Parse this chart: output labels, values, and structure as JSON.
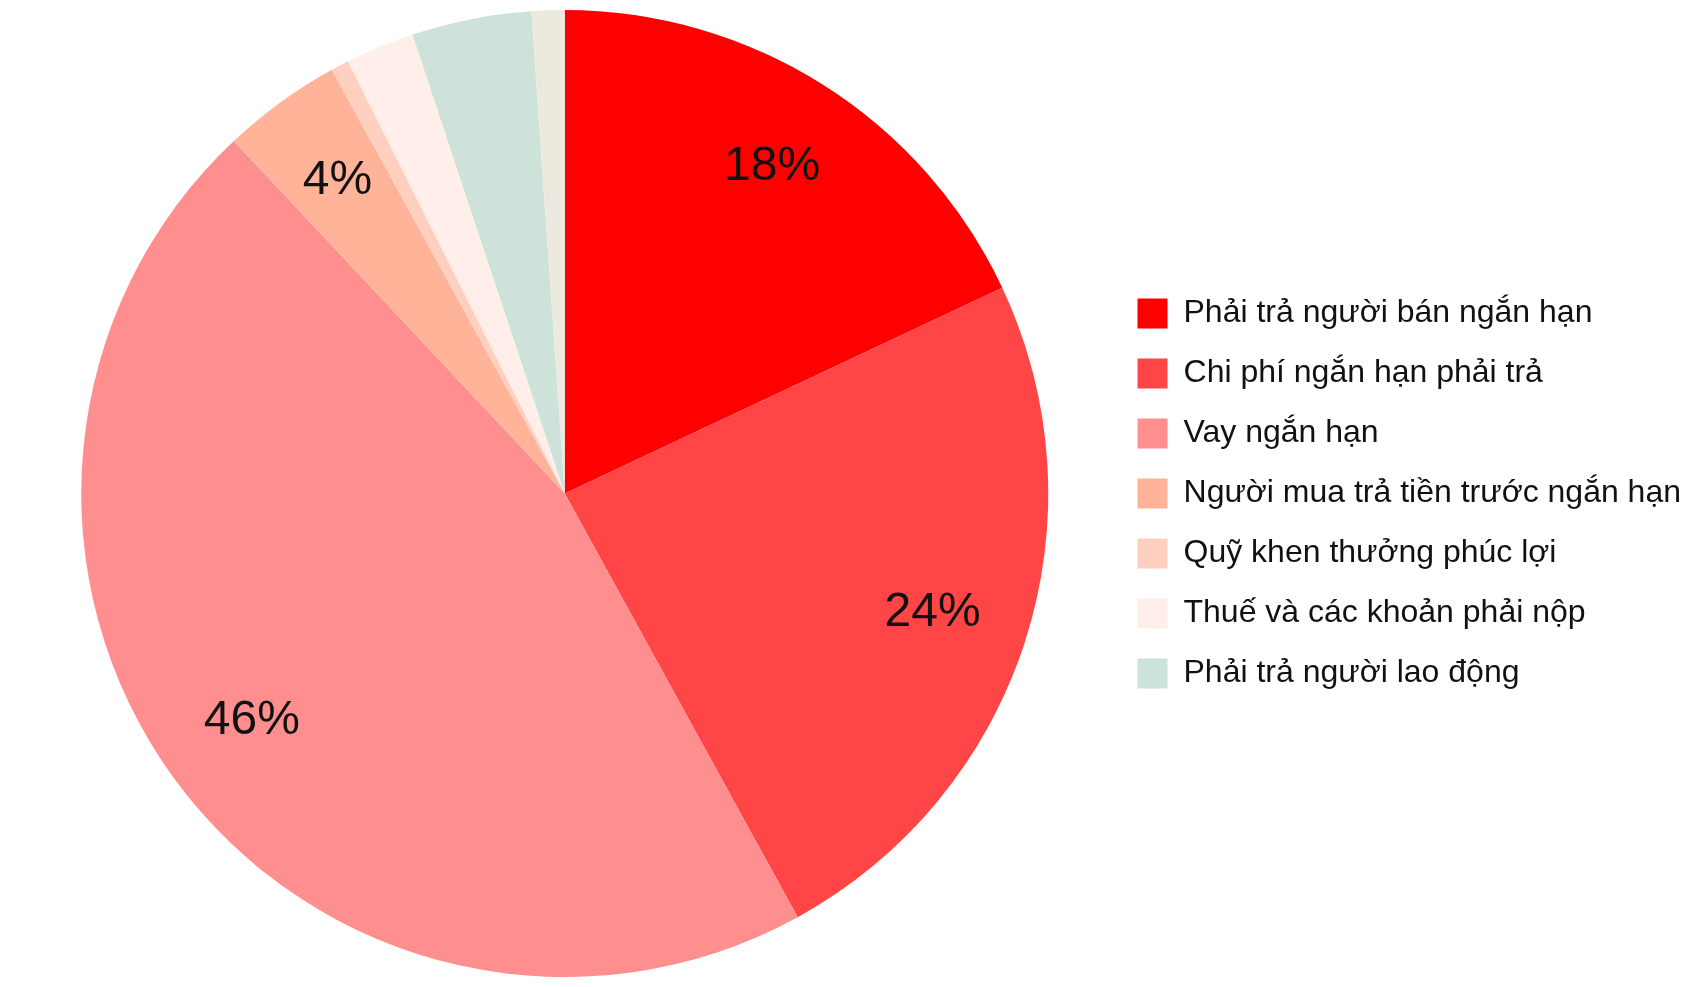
{
  "chart_data": {
    "type": "pie",
    "categories": [
      "Phải trả người bán ngắn hạn",
      "Chi phí ngắn hạn phải trả",
      "Vay ngắn hạn",
      "Người mua trả tiền trước ngắn hạn",
      "Quỹ khen thưởng phúc lợi",
      "Thuế và các khoản phải nộp",
      "Phải trả người lao động",
      null
    ],
    "values": [
      18,
      24,
      46,
      4,
      0.6,
      2.3,
      4,
      1.1
    ],
    "colors": [
      "#ff0000",
      "#ff4545",
      "#ff8f8f",
      "#ffb399",
      "#ffcfc0",
      "#ffeee9",
      "#cde3d9",
      "#ece9df"
    ],
    "value_labels": [
      "18%",
      "24%",
      "46%",
      "4%",
      null,
      null,
      null,
      null
    ],
    "legend": "right"
  }
}
